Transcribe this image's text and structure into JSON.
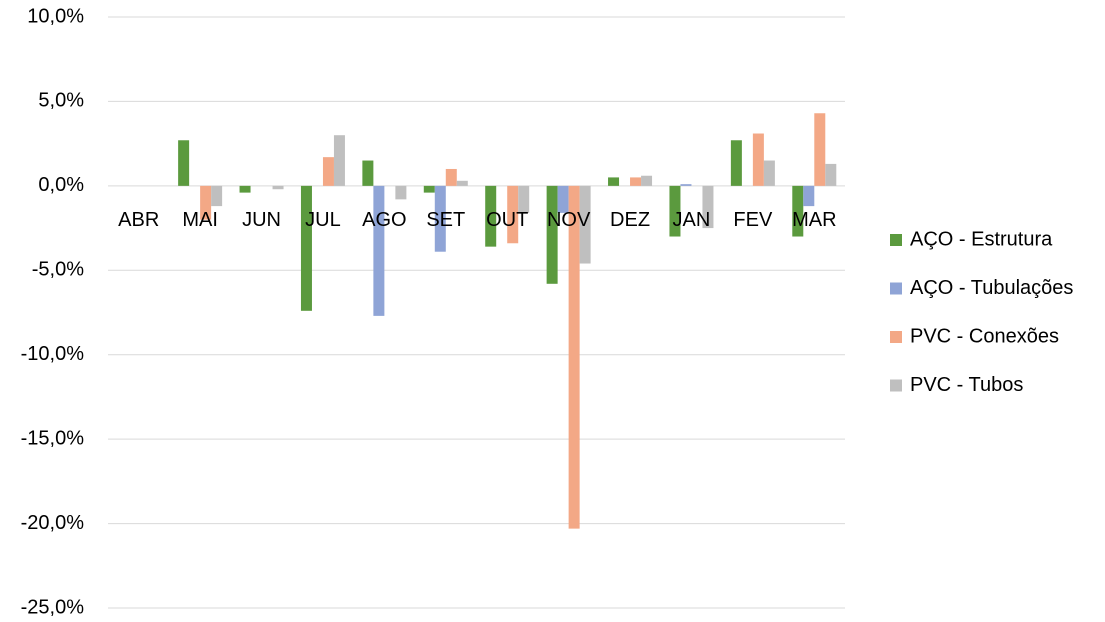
{
  "chart_data": {
    "type": "bar",
    "categories": [
      "ABR",
      "MAI",
      "JUN",
      "JUL",
      "AGO",
      "SET",
      "OUT",
      "NOV",
      "DEZ",
      "JAN",
      "FEV",
      "MAR"
    ],
    "series": [
      {
        "name": "AÇO - Estrutura",
        "color": "#5b9a3e",
        "values": [
          0,
          2.7,
          -0.4,
          -7.4,
          1.5,
          -0.4,
          -3.6,
          -5.8,
          0.5,
          -3.0,
          2.7,
          -3.0
        ]
      },
      {
        "name": "AÇO - Tubulações",
        "color": "#8fa4d6",
        "values": [
          0,
          0,
          0,
          0,
          -7.7,
          -3.9,
          0,
          -1.6,
          0,
          0.1,
          0,
          -1.2
        ]
      },
      {
        "name": "PVC - Conexões",
        "color": "#f3a886",
        "values": [
          0,
          -2.0,
          0,
          1.7,
          0,
          1.0,
          -3.4,
          -20.3,
          0.5,
          0,
          3.1,
          4.3
        ]
      },
      {
        "name": "PVC - Tubos",
        "color": "#bfbfbf",
        "values": [
          0,
          -1.2,
          -0.2,
          3.0,
          -0.8,
          0.3,
          -1.6,
          -4.6,
          0.6,
          -2.5,
          1.5,
          1.3
        ]
      }
    ],
    "ylim": [
      -25,
      10
    ],
    "yticks": [
      {
        "value": -25,
        "label": "-25,0%"
      },
      {
        "value": -20,
        "label": "-20,0%"
      },
      {
        "value": -15,
        "label": "-15,0%"
      },
      {
        "value": -10,
        "label": "-10,0%"
      },
      {
        "value": -5,
        "label": "-5,0%"
      },
      {
        "value": 0,
        "label": "0,0%"
      },
      {
        "value": 5,
        "label": "5,0%"
      },
      {
        "value": 10,
        "label": "10,0%"
      }
    ],
    "grid": true,
    "legend": "right"
  }
}
